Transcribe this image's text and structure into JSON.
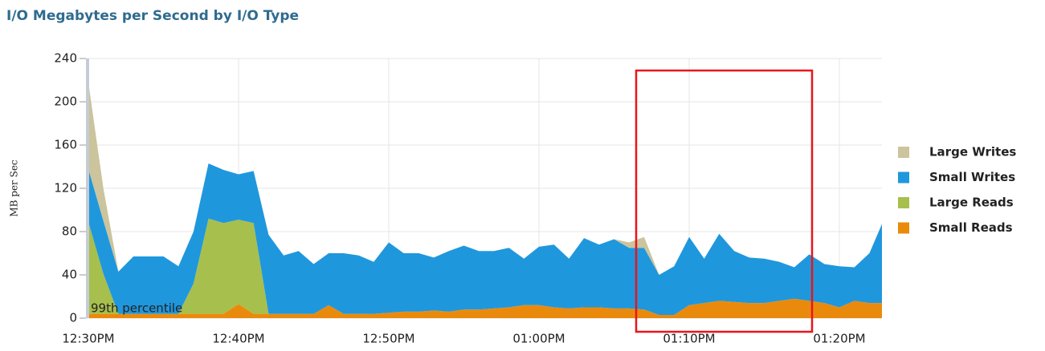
{
  "chart_data": {
    "type": "stacked_area",
    "title": "I/O Megabytes per Second by I/O Type",
    "y_label": "MB per Sec",
    "annotation": "99th percentile",
    "categories": [
      "12:30PM",
      null,
      null,
      null,
      null,
      null,
      null,
      null,
      null,
      null,
      "12:40PM",
      null,
      null,
      null,
      null,
      null,
      null,
      null,
      null,
      null,
      "12:50PM",
      null,
      null,
      null,
      null,
      null,
      null,
      null,
      null,
      null,
      "01:00PM",
      null,
      null,
      null,
      null,
      null,
      null,
      null,
      null,
      null,
      "01:10PM",
      null,
      null,
      null,
      null,
      null,
      null,
      null,
      null,
      null,
      "01:20PM",
      null,
      null,
      null
    ],
    "series": [
      {
        "name": "Small Reads",
        "color": "#ea8a0c",
        "values": [
          4,
          4,
          4,
          4,
          4,
          4,
          4,
          4,
          4,
          4,
          13,
          4,
          4,
          4,
          4,
          4,
          12,
          4,
          4,
          4,
          5,
          6,
          6,
          7,
          6,
          8,
          8,
          9,
          10,
          12,
          12,
          10,
          9,
          10,
          10,
          9,
          9,
          8,
          3,
          3,
          12,
          14,
          16,
          15,
          14,
          14,
          16,
          18,
          16,
          14,
          10,
          16,
          14,
          14
        ]
      },
      {
        "name": "Large Reads",
        "color": "#a7bf4c",
        "values": [
          85,
          37,
          0,
          0,
          0,
          0,
          0,
          28,
          88,
          84,
          78,
          84,
          0,
          0,
          0,
          0,
          0,
          0,
          0,
          0,
          0,
          0,
          0,
          0,
          0,
          0,
          0,
          0,
          0,
          0,
          0,
          0,
          0,
          0,
          0,
          0,
          0,
          0,
          0,
          0,
          0,
          0,
          0,
          0,
          0,
          0,
          0,
          0,
          0,
          0,
          0,
          0,
          0,
          0
        ]
      },
      {
        "name": "Small Writes",
        "color": "#1f97dd",
        "values": [
          49,
          49,
          39,
          53,
          53,
          53,
          44,
          48,
          51,
          49,
          42,
          48,
          73,
          54,
          58,
          46,
          48,
          56,
          54,
          48,
          65,
          54,
          54,
          49,
          56,
          59,
          54,
          53,
          55,
          43,
          54,
          58,
          46,
          64,
          58,
          64,
          56,
          57,
          37,
          45,
          63,
          41,
          62,
          47,
          42,
          41,
          36,
          29,
          43,
          36,
          38,
          31,
          46,
          73
        ]
      },
      {
        "name": "Large Writes",
        "color": "#cbc49c",
        "values": [
          80,
          30,
          0,
          0,
          0,
          0,
          0,
          0,
          0,
          0,
          0,
          0,
          0,
          0,
          0,
          0,
          0,
          0,
          0,
          0,
          0,
          0,
          0,
          0,
          0,
          0,
          0,
          0,
          0,
          0,
          0,
          0,
          0,
          0,
          0,
          0,
          5,
          10,
          0,
          0,
          0,
          0,
          0,
          0,
          0,
          0,
          0,
          0,
          0,
          0,
          0,
          0,
          0,
          0
        ]
      }
    ],
    "ylim": [
      0,
      240
    ],
    "yticks": [
      0,
      40,
      80,
      120,
      160,
      200,
      240
    ],
    "grid": true
  }
}
